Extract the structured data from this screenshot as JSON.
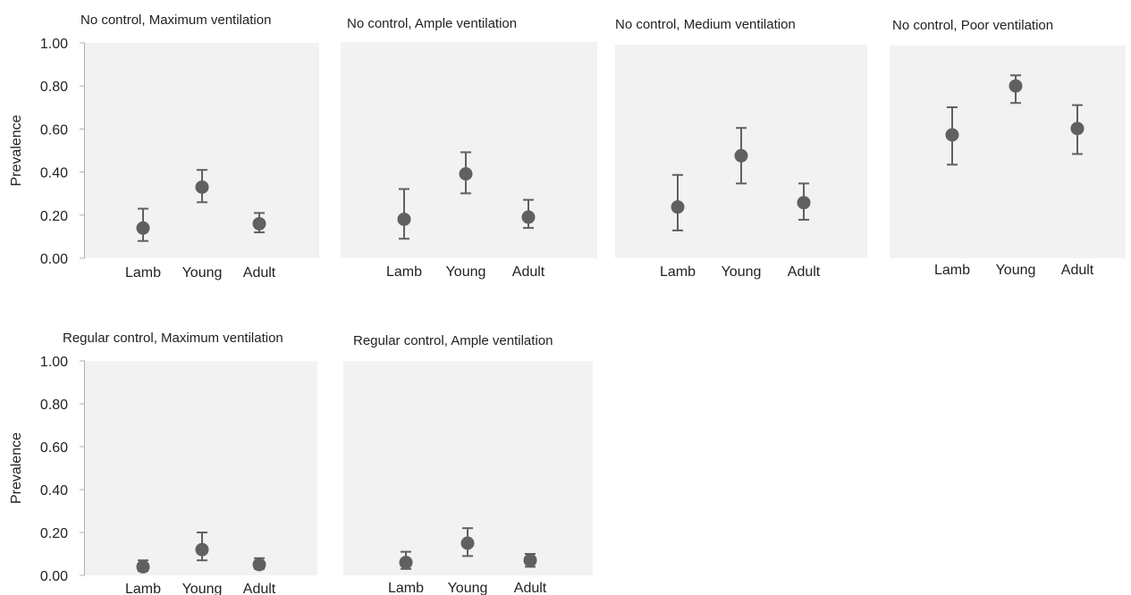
{
  "chart_data": [
    {
      "type": "scatter",
      "title": "No control, Maximum ventilation",
      "ylabel": "Prevalence",
      "categories": [
        "Lamb",
        "Young",
        "Adult"
      ],
      "ylim": [
        0,
        1
      ],
      "yticks": [
        "0.00",
        "0.20",
        "0.40",
        "0.60",
        "0.80",
        "1.00"
      ],
      "values": [
        0.14,
        0.33,
        0.16
      ],
      "lower": [
        0.08,
        0.26,
        0.12
      ],
      "upper": [
        0.23,
        0.41,
        0.21
      ],
      "colors": {
        "point": "#606060",
        "error_bar": "#606060",
        "plot_background": "#f2f2f2"
      }
    },
    {
      "type": "scatter",
      "title": "No control, Ample ventilation",
      "categories": [
        "Lamb",
        "Young",
        "Adult"
      ],
      "ylim": [
        0,
        1
      ],
      "values": [
        0.18,
        0.39,
        0.19
      ],
      "lower": [
        0.09,
        0.3,
        0.14
      ],
      "upper": [
        0.32,
        0.49,
        0.27
      ],
      "colors": {
        "point": "#606060",
        "error_bar": "#606060",
        "plot_background": "#f2f2f2"
      }
    },
    {
      "type": "scatter",
      "title": "No control, Medium ventilation",
      "categories": [
        "Lamb",
        "Young",
        "Adult"
      ],
      "ylim": [
        0,
        1
      ],
      "values": [
        0.24,
        0.48,
        0.26
      ],
      "lower": [
        0.13,
        0.35,
        0.18
      ],
      "upper": [
        0.39,
        0.61,
        0.35
      ],
      "colors": {
        "point": "#606060",
        "error_bar": "#606060",
        "plot_background": "#f2f2f2"
      }
    },
    {
      "type": "scatter",
      "title": "No control, Poor ventilation",
      "categories": [
        "Lamb",
        "Young",
        "Adult"
      ],
      "ylim": [
        0,
        1
      ],
      "values": [
        0.58,
        0.81,
        0.61
      ],
      "lower": [
        0.44,
        0.73,
        0.49
      ],
      "upper": [
        0.71,
        0.86,
        0.72
      ],
      "colors": {
        "point": "#606060",
        "error_bar": "#606060",
        "plot_background": "#f2f2f2"
      }
    },
    {
      "type": "scatter",
      "title": "Regular control, Maximum ventilation",
      "ylabel": "Prevalence",
      "categories": [
        "Lamb",
        "Young",
        "Adult"
      ],
      "ylim": [
        0,
        1
      ],
      "yticks": [
        "0.00",
        "0.20",
        "0.40",
        "0.60",
        "0.80",
        "1.00"
      ],
      "values": [
        0.04,
        0.12,
        0.05
      ],
      "lower": [
        0.02,
        0.07,
        0.03
      ],
      "upper": [
        0.07,
        0.2,
        0.08
      ],
      "colors": {
        "point": "#606060",
        "error_bar": "#606060",
        "plot_background": "#f2f2f2"
      }
    },
    {
      "type": "scatter",
      "title": "Regular control, Ample ventilation",
      "categories": [
        "Lamb",
        "Young",
        "Adult"
      ],
      "ylim": [
        0,
        1
      ],
      "values": [
        0.06,
        0.15,
        0.07
      ],
      "lower": [
        0.03,
        0.09,
        0.04
      ],
      "upper": [
        0.11,
        0.22,
        0.1
      ],
      "colors": {
        "point": "#606060",
        "error_bar": "#606060",
        "plot_background": "#f2f2f2"
      }
    }
  ]
}
